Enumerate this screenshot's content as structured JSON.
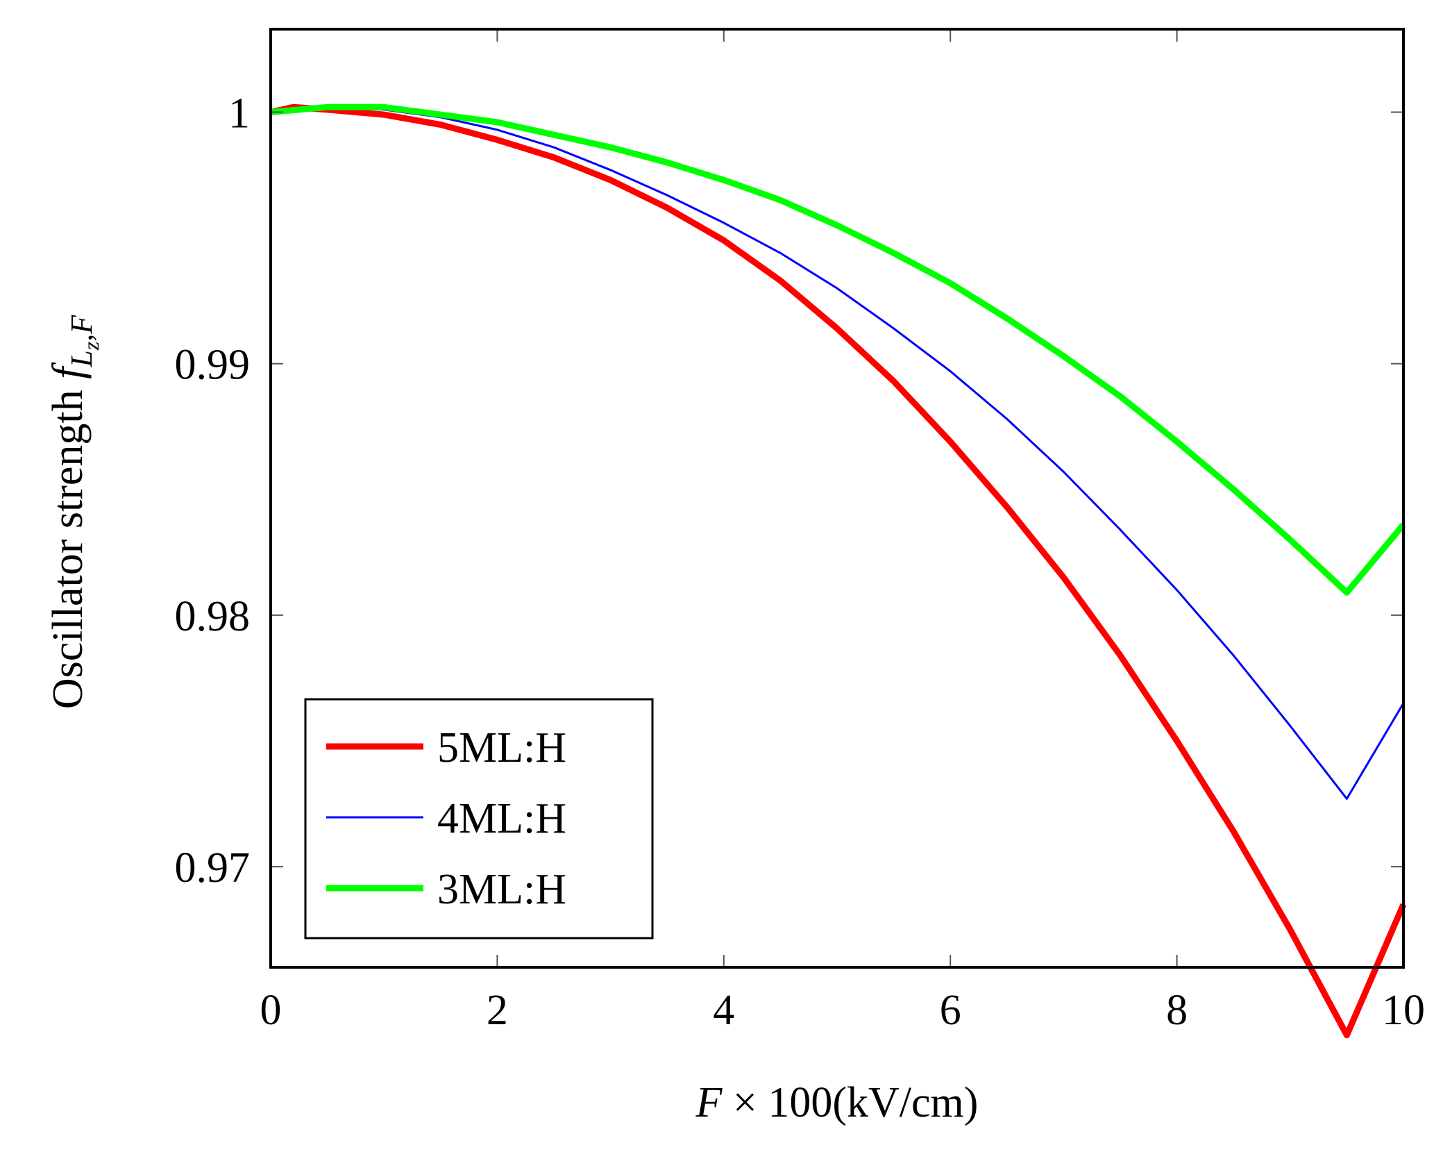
{
  "chart_data": {
    "type": "line",
    "title": "",
    "xlabel": "F × 100(kV/cm)",
    "xlabel_var": "F",
    "xlabel_rest": " × 100(kV/cm)",
    "ylabel": "Oscillator strength f_{Lz,F}",
    "ylabel_text": "Oscillator strength ",
    "ylabel_var": "f",
    "ylabel_sub_L": "L",
    "ylabel_sub_z": "z",
    "ylabel_sub_F": ",F",
    "xlim": [
      0,
      10
    ],
    "ylim": [
      0.966,
      1.0033
    ],
    "xticks": [
      0,
      2,
      4,
      6,
      8,
      10
    ],
    "xtick_labels": [
      "0",
      "2",
      "4",
      "6",
      "8",
      "10"
    ],
    "yticks": [
      0.97,
      0.98,
      0.99,
      1.0
    ],
    "ytick_labels": [
      "0.97",
      "0.98",
      "0.99",
      "1"
    ],
    "grid": false,
    "legend_position": "bottom-left",
    "series": [
      {
        "name": "5ML:H",
        "color": "#ff0000",
        "line_weight": "thick",
        "x": [
          0,
          0.2,
          0.5,
          1,
          1.5,
          2,
          2.5,
          3,
          3.5,
          4,
          4.5,
          5,
          5.5,
          6,
          6.5,
          7,
          7.5,
          8,
          8.5,
          9,
          9.5,
          10
        ],
        "y": [
          1.0,
          1.0002,
          1.0001,
          0.9999,
          0.9995,
          0.9989,
          0.9982,
          0.9973,
          0.9962,
          0.9949,
          0.9933,
          0.9914,
          0.9893,
          0.9869,
          0.9843,
          0.9815,
          0.9784,
          0.975,
          0.9714,
          0.9675,
          0.9633,
          0.9685
        ]
      },
      {
        "name": "4ML:H",
        "color": "#0000ff",
        "line_weight": "thin",
        "x": [
          0,
          0.5,
          1,
          1.5,
          2,
          2.5,
          3,
          3.5,
          4,
          4.5,
          5,
          5.5,
          6,
          6.5,
          7,
          7.5,
          8,
          8.5,
          9,
          9.5,
          10
        ],
        "y": [
          1.0,
          1.0002,
          1.0001,
          0.9998,
          0.9993,
          0.9986,
          0.9977,
          0.9967,
          0.9956,
          0.9944,
          0.993,
          0.9914,
          0.9897,
          0.9878,
          0.9857,
          0.9834,
          0.981,
          0.9784,
          0.9756,
          0.9727,
          0.9765
        ]
      },
      {
        "name": "3ML:H",
        "color": "#00ff00",
        "line_weight": "thick",
        "x": [
          0,
          0.5,
          1,
          1.5,
          2,
          2.5,
          3,
          3.5,
          4,
          4.5,
          5,
          5.5,
          6,
          6.5,
          7,
          7.5,
          8,
          8.5,
          9,
          9.5,
          10
        ],
        "y": [
          1.0,
          1.0002,
          1.0002,
          0.9999,
          0.9996,
          0.9991,
          0.9986,
          0.998,
          0.9973,
          0.9965,
          0.9955,
          0.9944,
          0.9932,
          0.9918,
          0.9903,
          0.9887,
          0.9869,
          0.985,
          0.983,
          0.9809,
          0.9836
        ]
      }
    ]
  }
}
